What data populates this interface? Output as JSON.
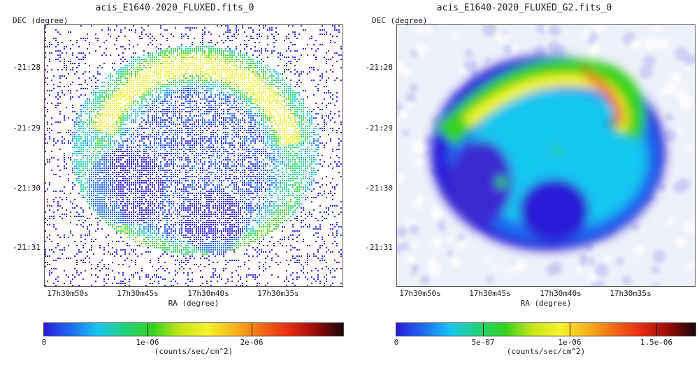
{
  "panels": [
    {
      "title": "acis_E1640-2020_FLUXED.fits_0",
      "dec_label": "DEC (degree)",
      "ra_label": "RA (degree)",
      "dec_ticks": [
        "-21:28",
        "-21:29",
        "-21:30",
        "-21:31"
      ],
      "ra_ticks": [
        "17h30m50s",
        "17h30m45s",
        "17h30m40s",
        "17h30m35s"
      ],
      "colorbar_ticks": [
        "0",
        "1e-06",
        "2e-06"
      ],
      "colorbar_unit": "(counts/sec/cm^2)"
    },
    {
      "title": "acis_E1640-2020_FLUXED_G2.fits_0",
      "dec_label": "DEC (degree)",
      "ra_label": "RA (degree)",
      "dec_ticks": [
        "-21:28",
        "-21:29",
        "-21:30",
        "-21:31"
      ],
      "ra_ticks": [
        "17h30m50s",
        "17h30m45s",
        "17h30m40s",
        "17h30m35s"
      ],
      "colorbar_ticks": [
        "0",
        "5e-07",
        "1e-06",
        "1.5e-06"
      ],
      "colorbar_unit": "(counts/sec/cm^2)"
    }
  ],
  "colormap": [
    "#2a1bd6",
    "#1f6cf2",
    "#19c6f0",
    "#25d27a",
    "#36d11d",
    "#c8e61a",
    "#f6f42a",
    "#f7b51c",
    "#f16a16",
    "#e82a12",
    "#9a0b0b",
    "#1a0606"
  ]
}
